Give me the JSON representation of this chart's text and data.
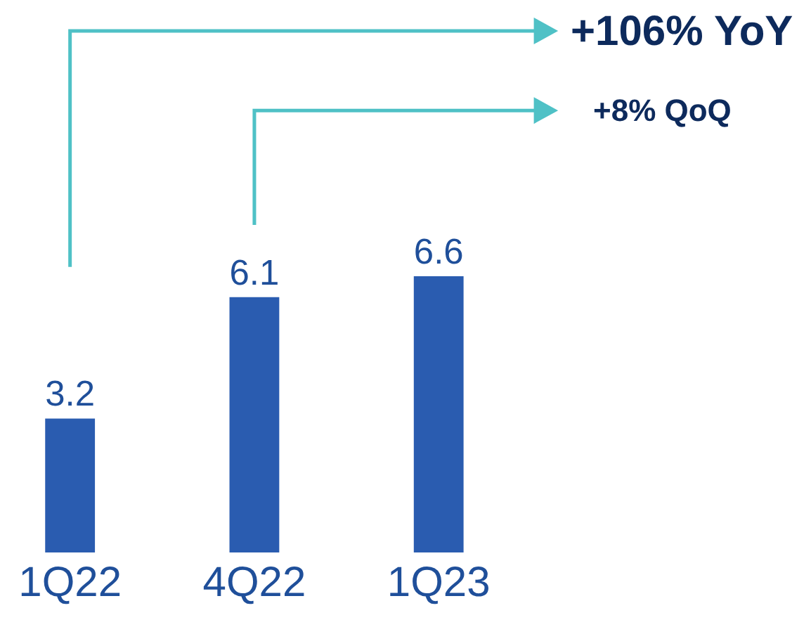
{
  "chart_data": {
    "type": "bar",
    "categories": [
      "1Q22",
      "4Q22",
      "1Q23"
    ],
    "values": [
      3.2,
      6.1,
      6.6
    ],
    "color": "#2a5cb0",
    "data_labels": true,
    "legend": false,
    "tick_labels": "x",
    "annotations": [
      "+106% YoY",
      "+8% QoQ"
    ]
  }
}
